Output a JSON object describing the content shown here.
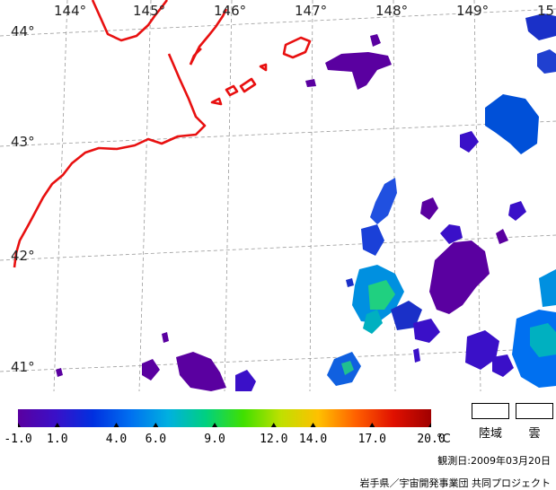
{
  "map": {
    "longitude_labels": [
      "144°",
      "145°",
      "146°",
      "147°",
      "148°",
      "149°",
      "15"
    ],
    "latitude_labels": [
      "44°",
      "43°",
      "42°",
      "41°"
    ],
    "coastline_color": "#e81010",
    "grid_color": "#9a9a9a"
  },
  "colorbar": {
    "ticks": [
      "-1.0",
      "1.0",
      "4.0",
      "6.0",
      "9.0",
      "12.0",
      "14.0",
      "17.0",
      "20.0"
    ],
    "tick_values": [
      -1,
      1,
      4,
      6,
      9,
      12,
      14,
      17,
      20
    ],
    "range": [
      -1,
      20
    ],
    "unit": "°C",
    "colors": [
      "#5a00a0",
      "#3a10c8",
      "#0030e0",
      "#0070f0",
      "#00b0e0",
      "#00d080",
      "#40e000",
      "#c0e000",
      "#ffc000",
      "#ff6000",
      "#e01000",
      "#a00000"
    ]
  },
  "legend": {
    "land_label": "陸域",
    "cloud_label": "雲"
  },
  "observation_date": "観測日:2009年03月20日",
  "credit": "岩手県／宇宙開発事業団 共同プロジェクト"
}
